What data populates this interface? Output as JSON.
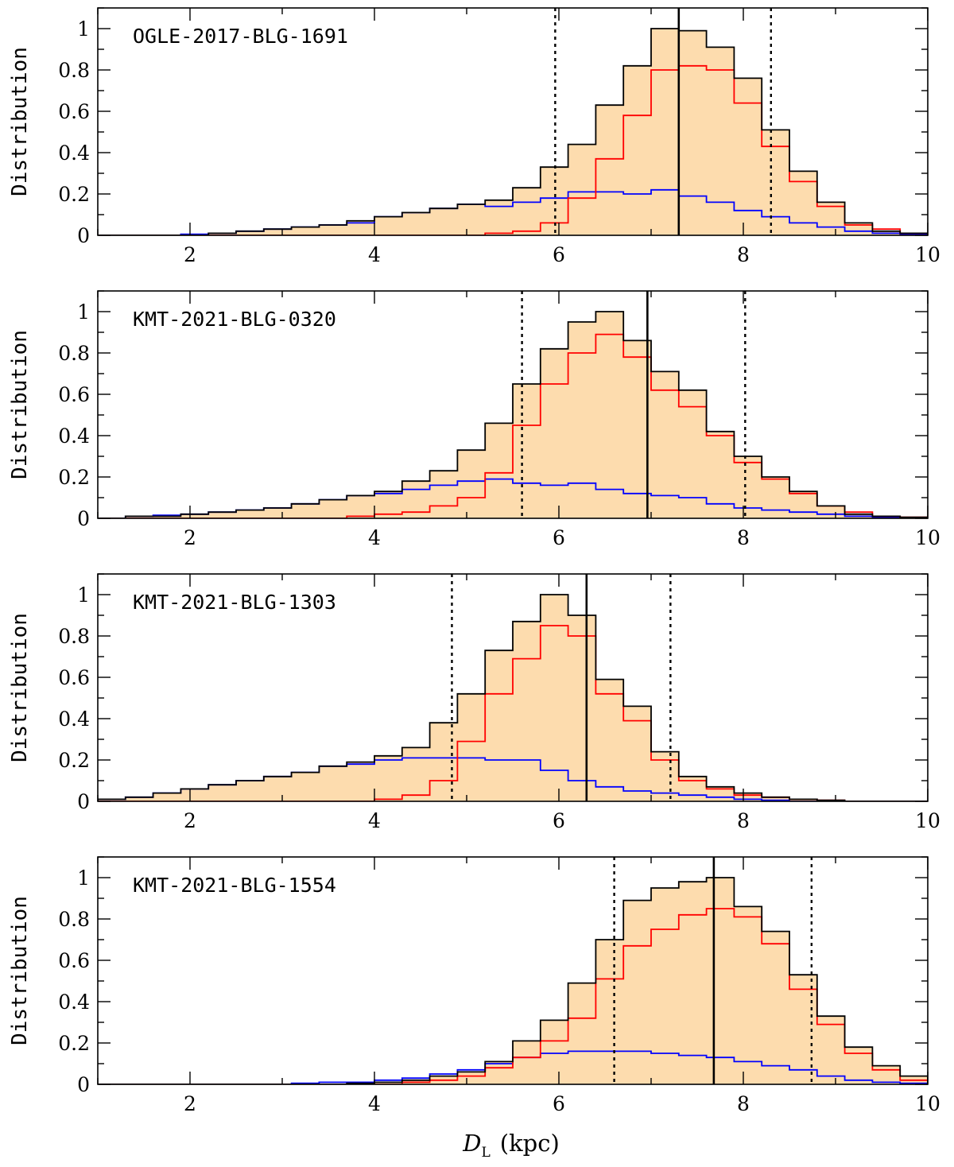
{
  "figure": {
    "xlabel": {
      "symbol": "D",
      "subscript": "L",
      "unit": "(kpc)"
    }
  },
  "chart_data": [
    {
      "type": "histogram",
      "label": "OGLE-2017-BLG-1691",
      "ylabel": "Distribution",
      "xlim": [
        1,
        10
      ],
      "ylim": [
        0,
        1.1
      ],
      "xticks": [
        2,
        4,
        6,
        8,
        10
      ],
      "yticks": [
        0,
        0.2,
        0.4,
        0.6,
        0.8,
        1
      ],
      "bin_edges": [
        1.0,
        1.3,
        1.6,
        1.9,
        2.2,
        2.5,
        2.8,
        3.1,
        3.4,
        3.7,
        4.0,
        4.3,
        4.6,
        4.9,
        5.2,
        5.5,
        5.8,
        6.1,
        6.4,
        6.7,
        7.0,
        7.3,
        7.6,
        7.9,
        8.2,
        8.5,
        8.8,
        9.1,
        9.4,
        9.7,
        10.0
      ],
      "series": [
        {
          "color": "#000000",
          "fill": "#fddcae",
          "values": [
            0,
            0,
            0,
            0,
            0.01,
            0.02,
            0.03,
            0.04,
            0.05,
            0.07,
            0.09,
            0.11,
            0.13,
            0.15,
            0.17,
            0.23,
            0.33,
            0.44,
            0.63,
            0.82,
            1.0,
            0.99,
            0.91,
            0.76,
            0.51,
            0.31,
            0.16,
            0.06,
            0.02,
            0.01
          ]
        },
        {
          "color": "#ff0000",
          "values": [
            0,
            0,
            0,
            0,
            0,
            0,
            0,
            0,
            0,
            0,
            0,
            0,
            0,
            0,
            0.01,
            0.02,
            0.06,
            0.18,
            0.37,
            0.58,
            0.8,
            0.82,
            0.8,
            0.64,
            0.43,
            0.26,
            0.14,
            0.05,
            0.03,
            0.01
          ]
        },
        {
          "color": "#0000ff",
          "values": [
            0,
            0,
            0,
            0.005,
            0.01,
            0.02,
            0.03,
            0.04,
            0.05,
            0.06,
            0.09,
            0.11,
            0.13,
            0.15,
            0.14,
            0.16,
            0.18,
            0.21,
            0.21,
            0.2,
            0.22,
            0.19,
            0.16,
            0.12,
            0.09,
            0.06,
            0.04,
            0.02,
            0.01,
            0.005
          ]
        }
      ],
      "median": 7.3,
      "interval": [
        5.96,
        8.3
      ]
    },
    {
      "type": "histogram",
      "label": "KMT-2021-BLG-0320",
      "ylabel": "Distribution",
      "xlim": [
        1,
        10
      ],
      "ylim": [
        0,
        1.1
      ],
      "xticks": [
        2,
        4,
        6,
        8,
        10
      ],
      "yticks": [
        0,
        0.2,
        0.4,
        0.6,
        0.8,
        1
      ],
      "bin_edges": [
        1.0,
        1.3,
        1.6,
        1.9,
        2.2,
        2.5,
        2.8,
        3.1,
        3.4,
        3.7,
        4.0,
        4.3,
        4.6,
        4.9,
        5.2,
        5.5,
        5.8,
        6.1,
        6.4,
        6.7,
        7.0,
        7.3,
        7.6,
        7.9,
        8.2,
        8.5,
        8.8,
        9.1,
        9.4,
        9.7,
        10.0
      ],
      "series": [
        {
          "color": "#000000",
          "fill": "#fddcae",
          "values": [
            0,
            0.01,
            0.01,
            0.02,
            0.03,
            0.04,
            0.05,
            0.07,
            0.09,
            0.11,
            0.13,
            0.18,
            0.23,
            0.33,
            0.46,
            0.65,
            0.82,
            0.95,
            1.0,
            0.86,
            0.71,
            0.62,
            0.42,
            0.3,
            0.2,
            0.13,
            0.06,
            0.02,
            0.01,
            0.005
          ]
        },
        {
          "color": "#ff0000",
          "values": [
            0,
            0,
            0,
            0,
            0,
            0,
            0,
            0,
            0,
            0.01,
            0.02,
            0.03,
            0.06,
            0.1,
            0.22,
            0.45,
            0.65,
            0.8,
            0.89,
            0.78,
            0.62,
            0.54,
            0.4,
            0.27,
            0.19,
            0.12,
            0.06,
            0.03,
            0.01,
            0.005
          ]
        },
        {
          "color": "#0000ff",
          "values": [
            0,
            0.01,
            0.015,
            0.02,
            0.03,
            0.04,
            0.05,
            0.07,
            0.09,
            0.11,
            0.12,
            0.14,
            0.16,
            0.18,
            0.19,
            0.17,
            0.16,
            0.17,
            0.14,
            0.12,
            0.11,
            0.1,
            0.07,
            0.05,
            0.04,
            0.03,
            0.02,
            0.01,
            0.005,
            0
          ]
        }
      ],
      "median": 6.96,
      "interval": [
        5.6,
        8.02
      ]
    },
    {
      "type": "histogram",
      "label": "KMT-2021-BLG-1303",
      "ylabel": "Distribution",
      "xlim": [
        1,
        10
      ],
      "ylim": [
        0,
        1.1
      ],
      "xticks": [
        2,
        4,
        6,
        8,
        10
      ],
      "yticks": [
        0,
        0.2,
        0.4,
        0.6,
        0.8,
        1
      ],
      "bin_edges": [
        1.0,
        1.3,
        1.6,
        1.9,
        2.2,
        2.5,
        2.8,
        3.1,
        3.4,
        3.7,
        4.0,
        4.3,
        4.6,
        4.9,
        5.2,
        5.5,
        5.8,
        6.1,
        6.4,
        6.7,
        7.0,
        7.3,
        7.6,
        7.9,
        8.2,
        8.5,
        8.8,
        9.1,
        9.4,
        9.7,
        10.0
      ],
      "series": [
        {
          "color": "#000000",
          "fill": "#fddcae",
          "values": [
            0.01,
            0.02,
            0.04,
            0.06,
            0.08,
            0.1,
            0.12,
            0.14,
            0.17,
            0.19,
            0.22,
            0.26,
            0.38,
            0.52,
            0.73,
            0.87,
            1.0,
            0.9,
            0.59,
            0.46,
            0.24,
            0.12,
            0.07,
            0.04,
            0.02,
            0.01,
            0.005,
            0,
            0,
            0
          ]
        },
        {
          "color": "#ff0000",
          "values": [
            0,
            0,
            0,
            0,
            0,
            0,
            0,
            0,
            0,
            0,
            0.01,
            0.03,
            0.1,
            0.29,
            0.52,
            0.69,
            0.85,
            0.8,
            0.52,
            0.39,
            0.2,
            0.1,
            0.06,
            0.03,
            0.02,
            0.01,
            0.005,
            0,
            0,
            0
          ]
        },
        {
          "color": "#0000ff",
          "values": [
            0.01,
            0.02,
            0.04,
            0.06,
            0.08,
            0.1,
            0.12,
            0.14,
            0.17,
            0.18,
            0.2,
            0.21,
            0.21,
            0.21,
            0.2,
            0.2,
            0.15,
            0.1,
            0.07,
            0.05,
            0.04,
            0.03,
            0.02,
            0.01,
            0.005,
            0,
            0,
            0,
            0,
            0
          ]
        }
      ],
      "median": 6.3,
      "interval": [
        4.84,
        7.21
      ]
    },
    {
      "type": "histogram",
      "label": "KMT-2021-BLG-1554",
      "ylabel": "Distribution",
      "xlim": [
        1,
        10
      ],
      "ylim": [
        0,
        1.1
      ],
      "xticks": [
        2,
        4,
        6,
        8,
        10
      ],
      "yticks": [
        0,
        0.2,
        0.4,
        0.6,
        0.8,
        1
      ],
      "bin_edges": [
        1.0,
        1.3,
        1.6,
        1.9,
        2.2,
        2.5,
        2.8,
        3.1,
        3.4,
        3.7,
        4.0,
        4.3,
        4.6,
        4.9,
        5.2,
        5.5,
        5.8,
        6.1,
        6.4,
        6.7,
        7.0,
        7.3,
        7.6,
        7.9,
        8.2,
        8.5,
        8.8,
        9.1,
        9.4,
        9.7,
        10.0
      ],
      "series": [
        {
          "color": "#000000",
          "fill": "#fddcae",
          "values": [
            0,
            0,
            0,
            0,
            0,
            0,
            0,
            0,
            0,
            0.005,
            0.01,
            0.02,
            0.04,
            0.06,
            0.11,
            0.21,
            0.31,
            0.49,
            0.7,
            0.89,
            0.95,
            0.98,
            1.0,
            0.86,
            0.74,
            0.53,
            0.33,
            0.18,
            0.09,
            0.04
          ]
        },
        {
          "color": "#ff0000",
          "values": [
            0,
            0,
            0,
            0,
            0,
            0,
            0,
            0,
            0,
            0,
            0,
            0.01,
            0.02,
            0.04,
            0.08,
            0.13,
            0.21,
            0.32,
            0.51,
            0.67,
            0.75,
            0.82,
            0.85,
            0.81,
            0.68,
            0.46,
            0.29,
            0.15,
            0.07,
            0.02
          ]
        },
        {
          "color": "#0000ff",
          "values": [
            0,
            0,
            0,
            0,
            0,
            0,
            0,
            0.005,
            0.01,
            0.01,
            0.02,
            0.03,
            0.05,
            0.07,
            0.1,
            0.13,
            0.15,
            0.16,
            0.16,
            0.16,
            0.15,
            0.14,
            0.13,
            0.11,
            0.09,
            0.07,
            0.04,
            0.02,
            0.01,
            0.005
          ]
        }
      ],
      "median": 7.68,
      "interval": [
        6.6,
        8.74
      ]
    }
  ]
}
